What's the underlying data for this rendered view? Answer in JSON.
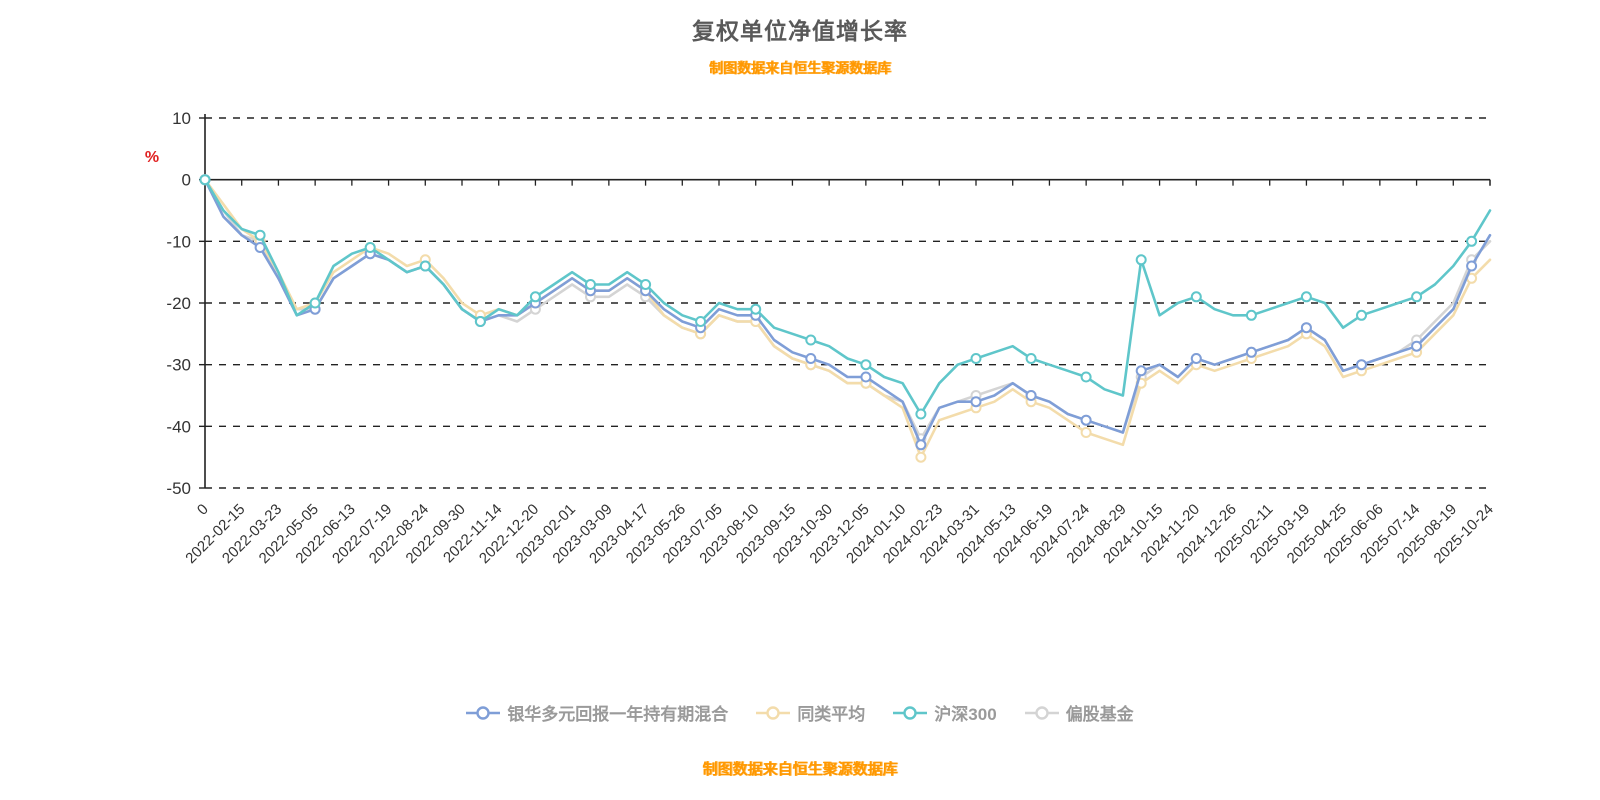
{
  "header": {
    "title": "复权单位净值增长率",
    "subtitle": "制图数据来自恒生聚源数据库"
  },
  "footer": {
    "source_note": "制图数据来自恒生聚源数据库"
  },
  "axis": {
    "percent_label": "%"
  },
  "colors": {
    "fund": "#7f9ed7",
    "peer_avg": "#f3dcab",
    "hs300": "#5fc6ca",
    "equity_fund": "#d4d4d4",
    "percent_label": "#e02020",
    "grid": "#222222",
    "axis_text": "#333333",
    "title_text": "#595959",
    "orange_note": "#ff9800"
  },
  "chart_data": {
    "type": "line",
    "title": "复权单位净值增长率",
    "xlabel": "",
    "ylabel": "%",
    "ylim": [
      -50,
      10
    ],
    "yticks": [
      10,
      0,
      -10,
      -20,
      -30,
      -40,
      -50
    ],
    "grid": "dashed",
    "legend_position": "bottom",
    "categories": [
      "0",
      "2022-02-15",
      "2022-03-23",
      "2022-05-05",
      "2022-06-13",
      "2022-07-19",
      "2022-08-24",
      "2022-09-30",
      "2022-11-14",
      "2022-12-20",
      "2023-02-01",
      "2023-03-09",
      "2023-04-17",
      "2023-05-26",
      "2023-07-05",
      "2023-08-10",
      "2023-09-15",
      "2023-10-30",
      "2023-12-05",
      "2024-01-10",
      "2024-02-23",
      "2024-03-31",
      "2024-05-13",
      "2024-06-19",
      "2024-07-24",
      "2024-08-29",
      "2024-10-15",
      "2024-11-20",
      "2024-12-26",
      "2025-02-11",
      "2025-03-19",
      "2025-04-25",
      "2025-06-06",
      "2025-07-14",
      "2025-08-19",
      "2025-10-24"
    ],
    "points_per_interval": 2,
    "series": [
      {
        "name": "偏股基金",
        "color": "#d4d4d4",
        "values": [
          0,
          -5,
          -9,
          -10,
          -16,
          -21,
          -21,
          -16,
          -14,
          -12,
          -13,
          -15,
          -14,
          -17,
          -21,
          -23,
          -22,
          -23,
          -21,
          -19,
          -17,
          -19,
          -19,
          -17,
          -19,
          -22,
          -24,
          -25,
          -22,
          -23,
          -23,
          -27,
          -29,
          -30,
          -31,
          -33,
          -33,
          -35,
          -36,
          -42,
          -37,
          -36,
          -35,
          -34,
          -33,
          -35,
          -36,
          -38,
          -39,
          -40,
          -41,
          -32,
          -30,
          -32,
          -29,
          -30,
          -29,
          -28,
          -27,
          -26,
          -24,
          -26,
          -31,
          -30,
          -29,
          -28,
          -26,
          -23,
          -20,
          -13,
          -10
        ]
      },
      {
        "name": "同类平均",
        "color": "#f3dcab",
        "values": [
          0,
          -4,
          -8,
          -10,
          -15,
          -21,
          -20,
          -15,
          -13,
          -11,
          -12,
          -14,
          -13,
          -16,
          -20,
          -22,
          -21,
          -22,
          -20,
          -18,
          -16,
          -18,
          -18,
          -16,
          -18,
          -22,
          -24,
          -25,
          -22,
          -23,
          -23,
          -27,
          -29,
          -30,
          -31,
          -33,
          -33,
          -35,
          -37,
          -45,
          -39,
          -38,
          -37,
          -36,
          -34,
          -36,
          -37,
          -39,
          -41,
          -42,
          -43,
          -33,
          -31,
          -33,
          -30,
          -31,
          -30,
          -29,
          -28,
          -27,
          -25,
          -27,
          -32,
          -31,
          -30,
          -29,
          -28,
          -25,
          -22,
          -16,
          -13
        ]
      },
      {
        "name": "银华多元回报一年持有期混合",
        "color": "#7f9ed7",
        "values": [
          0,
          -6,
          -9,
          -11,
          -16,
          -22,
          -21,
          -16,
          -14,
          -12,
          -13,
          -15,
          -14,
          -17,
          -21,
          -23,
          -22,
          -22,
          -20,
          -18,
          -16,
          -18,
          -18,
          -16,
          -18,
          -21,
          -23,
          -24,
          -21,
          -22,
          -22,
          -26,
          -28,
          -29,
          -30,
          -32,
          -32,
          -34,
          -36,
          -43,
          -37,
          -36,
          -36,
          -35,
          -33,
          -35,
          -36,
          -38,
          -39,
          -40,
          -41,
          -31,
          -30,
          -32,
          -29,
          -30,
          -29,
          -28,
          -27,
          -26,
          -24,
          -26,
          -31,
          -30,
          -29,
          -28,
          -27,
          -24,
          -21,
          -14,
          -9
        ]
      },
      {
        "name": "沪深300",
        "color": "#5fc6ca",
        "values": [
          0,
          -5,
          -8,
          -9,
          -15,
          -22,
          -20,
          -14,
          -12,
          -11,
          -13,
          -15,
          -14,
          -17,
          -21,
          -23,
          -21,
          -22,
          -19,
          -17,
          -15,
          -17,
          -17,
          -15,
          -17,
          -20,
          -22,
          -23,
          -20,
          -21,
          -21,
          -24,
          -25,
          -26,
          -27,
          -29,
          -30,
          -32,
          -33,
          -38,
          -33,
          -30,
          -29,
          -28,
          -27,
          -29,
          -30,
          -31,
          -32,
          -34,
          -35,
          -13,
          -22,
          -20,
          -19,
          -21,
          -22,
          -22,
          -21,
          -20,
          -19,
          -20,
          -24,
          -22,
          -21,
          -20,
          -19,
          -17,
          -14,
          -10,
          -5
        ]
      }
    ],
    "legend_order": [
      "银华多元回报一年持有期混合",
      "同类平均",
      "沪深300",
      "偏股基金"
    ]
  }
}
